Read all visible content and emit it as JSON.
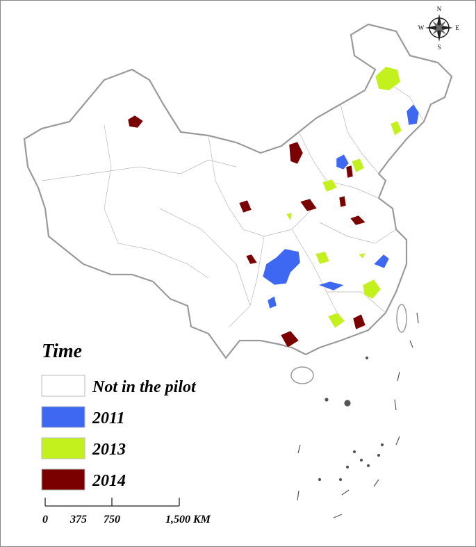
{
  "compass": {
    "north": "N",
    "south": "S",
    "west": "W",
    "east": "E"
  },
  "legend": {
    "title": "Time",
    "items": [
      {
        "label": "Not in the pilot",
        "color": "#ffffff"
      },
      {
        "label": "2011",
        "color": "#3f68f2"
      },
      {
        "label": "2013",
        "color": "#c3f11e"
      },
      {
        "label": "2014",
        "color": "#7a0000"
      }
    ]
  },
  "scale_bar": {
    "labels": [
      "0",
      "375",
      "750",
      "1,500 KM"
    ]
  }
}
